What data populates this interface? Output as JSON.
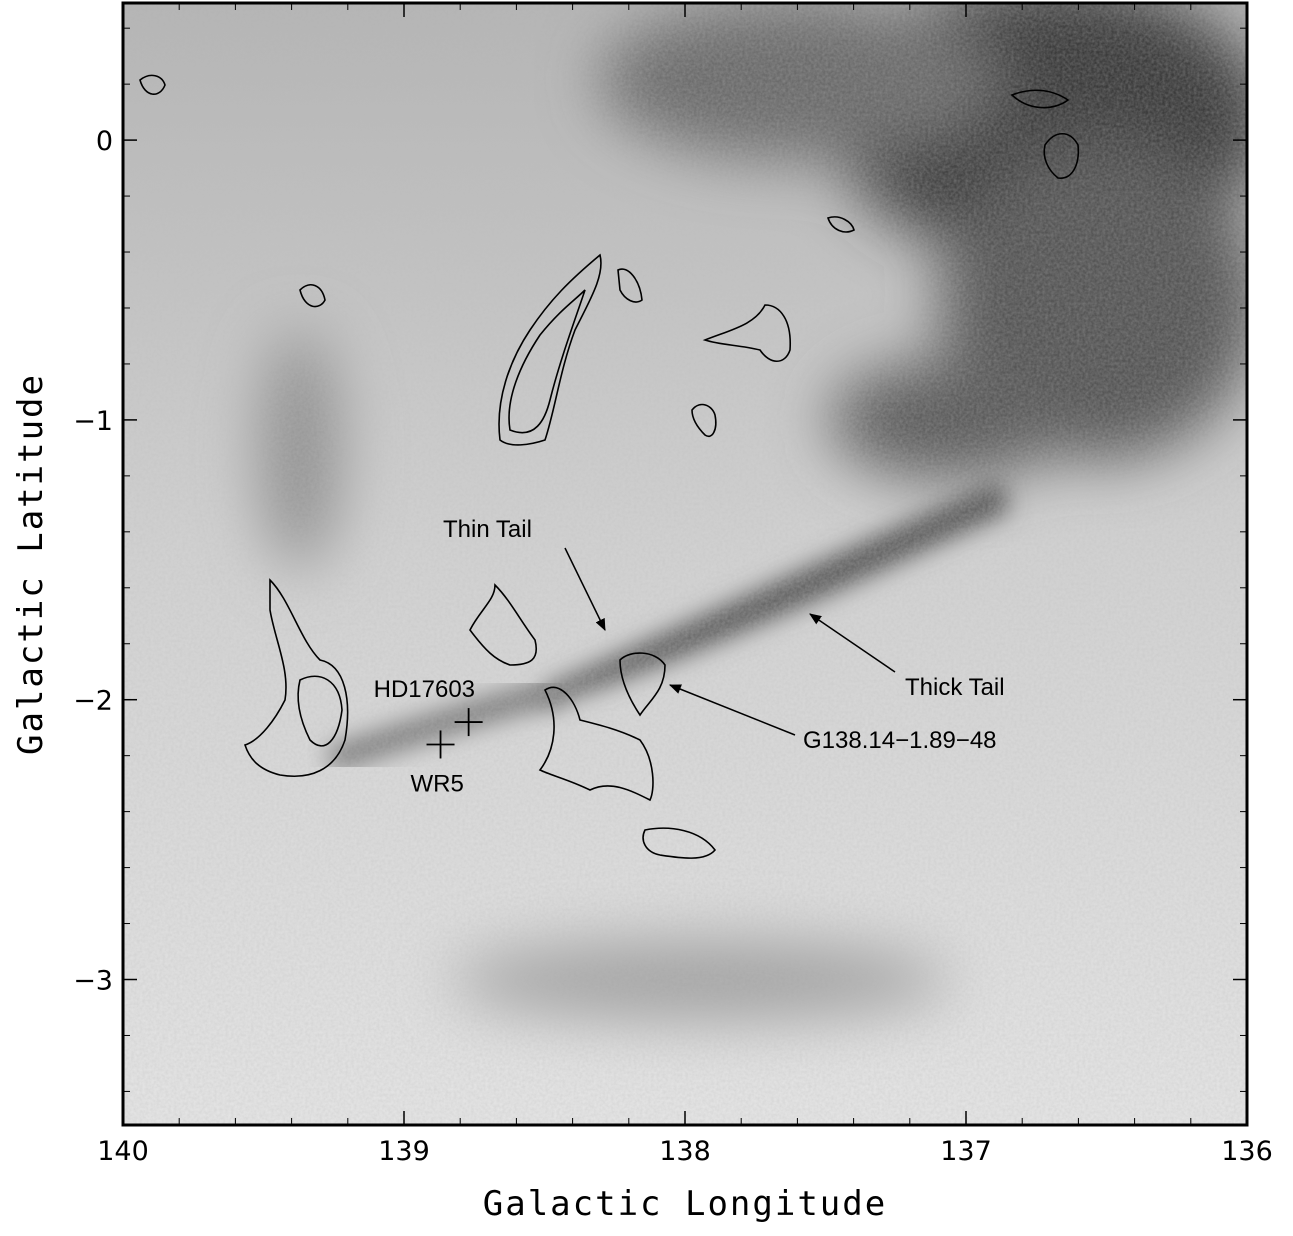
{
  "chart_data": {
    "type": "image",
    "xlabel": "Galactic Longitude",
    "ylabel": "Galactic Latitude",
    "xlim": [
      140,
      136
    ],
    "ylim": [
      -3.52,
      0.49
    ],
    "xticks": [
      140,
      139,
      138,
      137,
      136
    ],
    "yticks": [
      0,
      {
        "value": -1,
        "label": "−1"
      },
      {
        "value": -2,
        "label": "−2"
      },
      {
        "value": -3,
        "label": "−3"
      }
    ],
    "xminorticks": [
      139.8,
      139.6,
      139.4,
      139.2,
      138.8,
      138.6,
      138.4,
      138.2,
      137.8,
      137.6,
      137.4,
      137.2,
      136.8,
      136.6,
      136.4,
      136.2
    ],
    "yminorticks": [
      0.4,
      0.2,
      -0.2,
      -0.4,
      -0.6,
      -0.8,
      -1.2,
      -1.4,
      -1.6,
      -1.8,
      -2.2,
      -2.4,
      -2.6,
      -2.8,
      -3.2,
      -3.4
    ],
    "points": [
      {
        "name": "HD17603",
        "x": 138.77,
        "y": -2.08
      },
      {
        "name": "WR5",
        "x": 138.87,
        "y": -2.16
      }
    ],
    "annotations": [
      "Thin Tail",
      "Thick Tail",
      "G138.14−1.89−48"
    ]
  }
}
